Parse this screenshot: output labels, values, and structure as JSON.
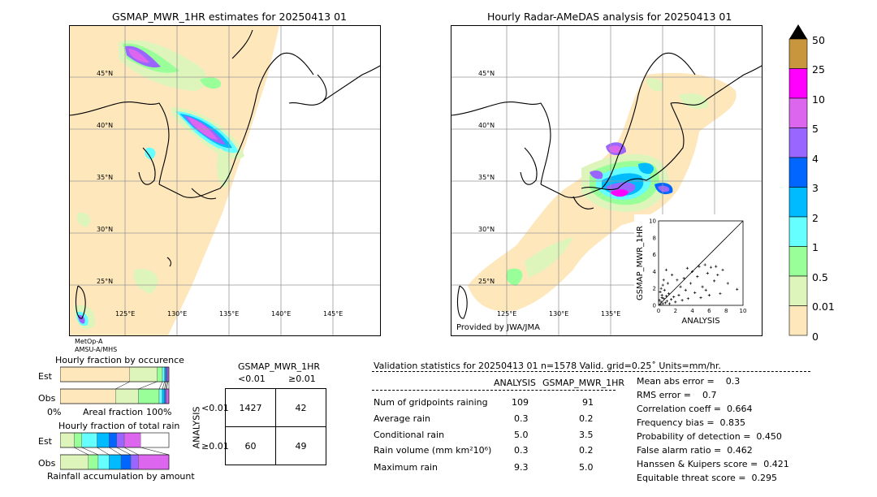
{
  "left_map": {
    "title": "GSMAP_MWR_1HR estimates for 20250413 01",
    "sat_label_1": "MetOp-A",
    "sat_label_2": "AMSU-A/MHS",
    "lat_labels": [
      "45°N",
      "40°N",
      "35°N",
      "30°N",
      "25°N"
    ],
    "lon_labels": [
      "125°E",
      "130°E",
      "135°E",
      "140°E",
      "145°E"
    ]
  },
  "right_map": {
    "title": "Hourly Radar-AMeDAS analysis for 20250413 01",
    "credit": "Provided by JWA/JMA",
    "lat_labels": [
      "45°N",
      "40°N",
      "35°N",
      "30°N",
      "25°N"
    ],
    "lon_labels": [
      "125°E",
      "130°E",
      "135°E"
    ]
  },
  "colorbar": {
    "labels": [
      "50",
      "25",
      "10",
      "5",
      "4",
      "3",
      "2",
      "1",
      "0.5",
      "0.01",
      "0"
    ],
    "colors": [
      "#c8963c",
      "#ff00ff",
      "#dd66ee",
      "#9966ff",
      "#0066ff",
      "#00bbff",
      "#66ffff",
      "#99ff99",
      "#ddf5bb",
      "#fde7bb"
    ],
    "top_color": "#000000"
  },
  "scatter": {
    "xlabel": "ANALYSIS",
    "ylabel": "GSMAP_MWR_1HR",
    "ticks": [
      "0",
      "2",
      "4",
      "6",
      "8",
      "10"
    ]
  },
  "occurrence": {
    "title": "Hourly fraction by occurence",
    "est_label": "Est",
    "obs_label": "Obs",
    "axis_left": "0%",
    "axis_mid": "Areal fraction",
    "axis_right": "100%"
  },
  "total_rain": {
    "title": "Hourly fraction of total rain",
    "est_label": "Est",
    "obs_label": "Obs",
    "axis_caption": "Rainfall accumulation by amount"
  },
  "contingency": {
    "title": "GSMAP_MWR_1HR",
    "col_lt": "<0.01",
    "col_ge": "≥0.01",
    "row_axis": "ANALYSIS",
    "row_lt": "<0.01",
    "row_ge": "≥0.01",
    "c11": "1427",
    "c12": "42",
    "c21": "60",
    "c22": "49"
  },
  "validation": {
    "header": "Validation statistics for 20250413 01  n=1578 Valid. grid=0.25˚ Units=mm/hr.",
    "col1": "ANALYSIS",
    "col2": "GSMAP_MWR_1HR",
    "rows": [
      {
        "label": "Num of gridpoints raining",
        "a": "109",
        "g": "91"
      },
      {
        "label": "Average rain",
        "a": "0.3",
        "g": "0.2"
      },
      {
        "label": "Conditional rain",
        "a": "5.0",
        "g": "3.5"
      },
      {
        "label": "Rain volume (mm km²10⁶)",
        "a": "0.3",
        "g": "0.2"
      },
      {
        "label": "Maximum rain",
        "a": "9.3",
        "g": "5.0"
      }
    ],
    "scores": [
      "Mean abs error =    0.3",
      "RMS error =    0.7",
      "Correlation coeff =  0.664",
      "Frequency bias =  0.835",
      "Probability of detection =  0.450",
      "False alarm ratio =  0.462",
      "Hanssen & Kuipers score =  0.421",
      "Equitable threat score =  0.295"
    ]
  },
  "chart_data": [
    {
      "type": "scatter",
      "title": "",
      "xlabel": "ANALYSIS",
      "ylabel": "GSMAP_MWR_1HR",
      "xlim": [
        0,
        10
      ],
      "ylim": [
        0,
        10
      ],
      "points": [
        [
          0.2,
          0.1
        ],
        [
          0.3,
          0.4
        ],
        [
          0.5,
          0.2
        ],
        [
          0.1,
          0.6
        ],
        [
          0.6,
          0.8
        ],
        [
          0.4,
          1.2
        ],
        [
          0.8,
          0.3
        ],
        [
          0.2,
          1.6
        ],
        [
          0.9,
          1.1
        ],
        [
          0.3,
          2.0
        ],
        [
          0.5,
          2.4
        ],
        [
          1.0,
          0.5
        ],
        [
          1.2,
          1.4
        ],
        [
          0.7,
          1.8
        ],
        [
          1.5,
          0.7
        ],
        [
          1.8,
          1.0
        ],
        [
          0.6,
          3.0
        ],
        [
          1.1,
          2.6
        ],
        [
          2.0,
          0.4
        ],
        [
          2.4,
          1.2
        ],
        [
          2.8,
          0.6
        ],
        [
          3.2,
          1.8
        ],
        [
          3.0,
          3.2
        ],
        [
          3.5,
          0.8
        ],
        [
          3.8,
          2.6
        ],
        [
          4.0,
          4.0
        ],
        [
          4.3,
          1.5
        ],
        [
          4.6,
          3.4
        ],
        [
          5.0,
          0.9
        ],
        [
          5.2,
          2.2
        ],
        [
          5.5,
          4.8
        ],
        [
          5.8,
          3.8
        ],
        [
          6.0,
          1.2
        ],
        [
          6.2,
          4.5
        ],
        [
          6.6,
          2.9
        ],
        [
          7.0,
          3.6
        ],
        [
          7.3,
          1.4
        ],
        [
          7.6,
          4.2
        ],
        [
          8.2,
          2.6
        ],
        [
          9.3,
          1.9
        ],
        [
          3.4,
          4.4
        ],
        [
          4.8,
          4.6
        ],
        [
          2.6,
          2.2
        ],
        [
          1.6,
          3.6
        ],
        [
          0.9,
          4.2
        ],
        [
          2.2,
          3.0
        ],
        [
          5.6,
          1.8
        ],
        [
          6.8,
          4.6
        ],
        [
          1.3,
          0.2
        ],
        [
          0.4,
          0.9
        ]
      ]
    },
    {
      "type": "bar",
      "title": "Hourly fraction by occurence",
      "categories": [
        "Est",
        "Obs"
      ],
      "series": [
        {
          "name": "0",
          "color": "#fde7bb",
          "values": [
            0.64,
            0.51
          ]
        },
        {
          "name": "0.01",
          "color": "#ddf5bb",
          "values": [
            0.25,
            0.21
          ]
        },
        {
          "name": "0.5",
          "color": "#99ff99",
          "values": [
            0.05,
            0.19
          ]
        },
        {
          "name": "1",
          "color": "#66ffff",
          "values": [
            0.02,
            0.03
          ]
        },
        {
          "name": "2",
          "color": "#00bbff",
          "values": [
            0.01,
            0.02
          ]
        },
        {
          "name": "3",
          "color": "#0066ff",
          "values": [
            0.01,
            0.01
          ]
        },
        {
          "name": "4",
          "color": "#9966ff",
          "values": [
            0.01,
            0.01
          ]
        },
        {
          "name": "5",
          "color": "#dd66ee",
          "values": [
            0.01,
            0.02
          ]
        }
      ]
    },
    {
      "type": "bar",
      "title": "Hourly fraction of total rain",
      "categories": [
        "Est",
        "Obs"
      ],
      "series": [
        {
          "name": "0.01",
          "color": "#ddf5bb",
          "values": [
            0.13,
            0.26
          ]
        },
        {
          "name": "0.5",
          "color": "#99ff99",
          "values": [
            0.07,
            0.09
          ]
        },
        {
          "name": "1",
          "color": "#66ffff",
          "values": [
            0.14,
            0.1
          ]
        },
        {
          "name": "2",
          "color": "#00bbff",
          "values": [
            0.11,
            0.11
          ]
        },
        {
          "name": "3",
          "color": "#0066ff",
          "values": [
            0.07,
            0.09
          ]
        },
        {
          "name": "4",
          "color": "#9966ff",
          "values": [
            0.07,
            0.07
          ]
        },
        {
          "name": "5",
          "color": "#dd66ee",
          "values": [
            0.15,
            0.28
          ]
        }
      ]
    }
  ]
}
